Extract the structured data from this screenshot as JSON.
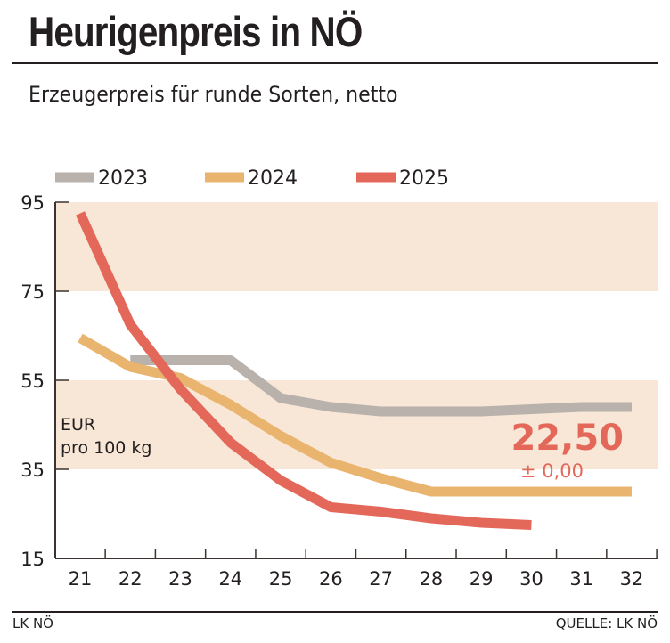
{
  "title": "Heurigenpreis in NÖ",
  "subtitle": "Erzeugerpreis für runde Sorten, netto",
  "footer": {
    "left": "LK NÖ",
    "right": "QUELLE: LK NÖ"
  },
  "chart_data": {
    "type": "line",
    "title": "Heurigenpreis in NÖ",
    "ylabel": "EUR pro 100 kg",
    "x": [
      21,
      22,
      23,
      24,
      25,
      26,
      27,
      28,
      29,
      30,
      31,
      32
    ],
    "xticks": [
      "21",
      "22",
      "23",
      "24",
      "25",
      "26",
      "27",
      "28",
      "29",
      "30",
      "31",
      "32"
    ],
    "yticks": [
      "95",
      "75",
      "55",
      "35",
      "15"
    ],
    "ylim": [
      15,
      95
    ],
    "bands": [
      [
        75,
        95
      ],
      [
        35,
        55
      ]
    ],
    "legend_position": "top",
    "series": [
      {
        "name": "2023",
        "color": "#b8b1ac",
        "values": [
          null,
          59.5,
          59.5,
          59.5,
          51,
          49,
          48,
          48,
          48,
          48.5,
          49,
          49
        ]
      },
      {
        "name": "2024",
        "color": "#e9b46e",
        "values": [
          64.5,
          58,
          55.5,
          49.5,
          42.5,
          36.5,
          33,
          30,
          30,
          30,
          30,
          30
        ]
      },
      {
        "name": "2025",
        "color": "#e4685a",
        "values": [
          92.5,
          67.5,
          53,
          41,
          32.5,
          26.5,
          25.5,
          24,
          23,
          22.5,
          null,
          null
        ]
      }
    ],
    "annotation": {
      "value": "22,50",
      "change": "± 0,00",
      "color": "#e4685a"
    }
  }
}
